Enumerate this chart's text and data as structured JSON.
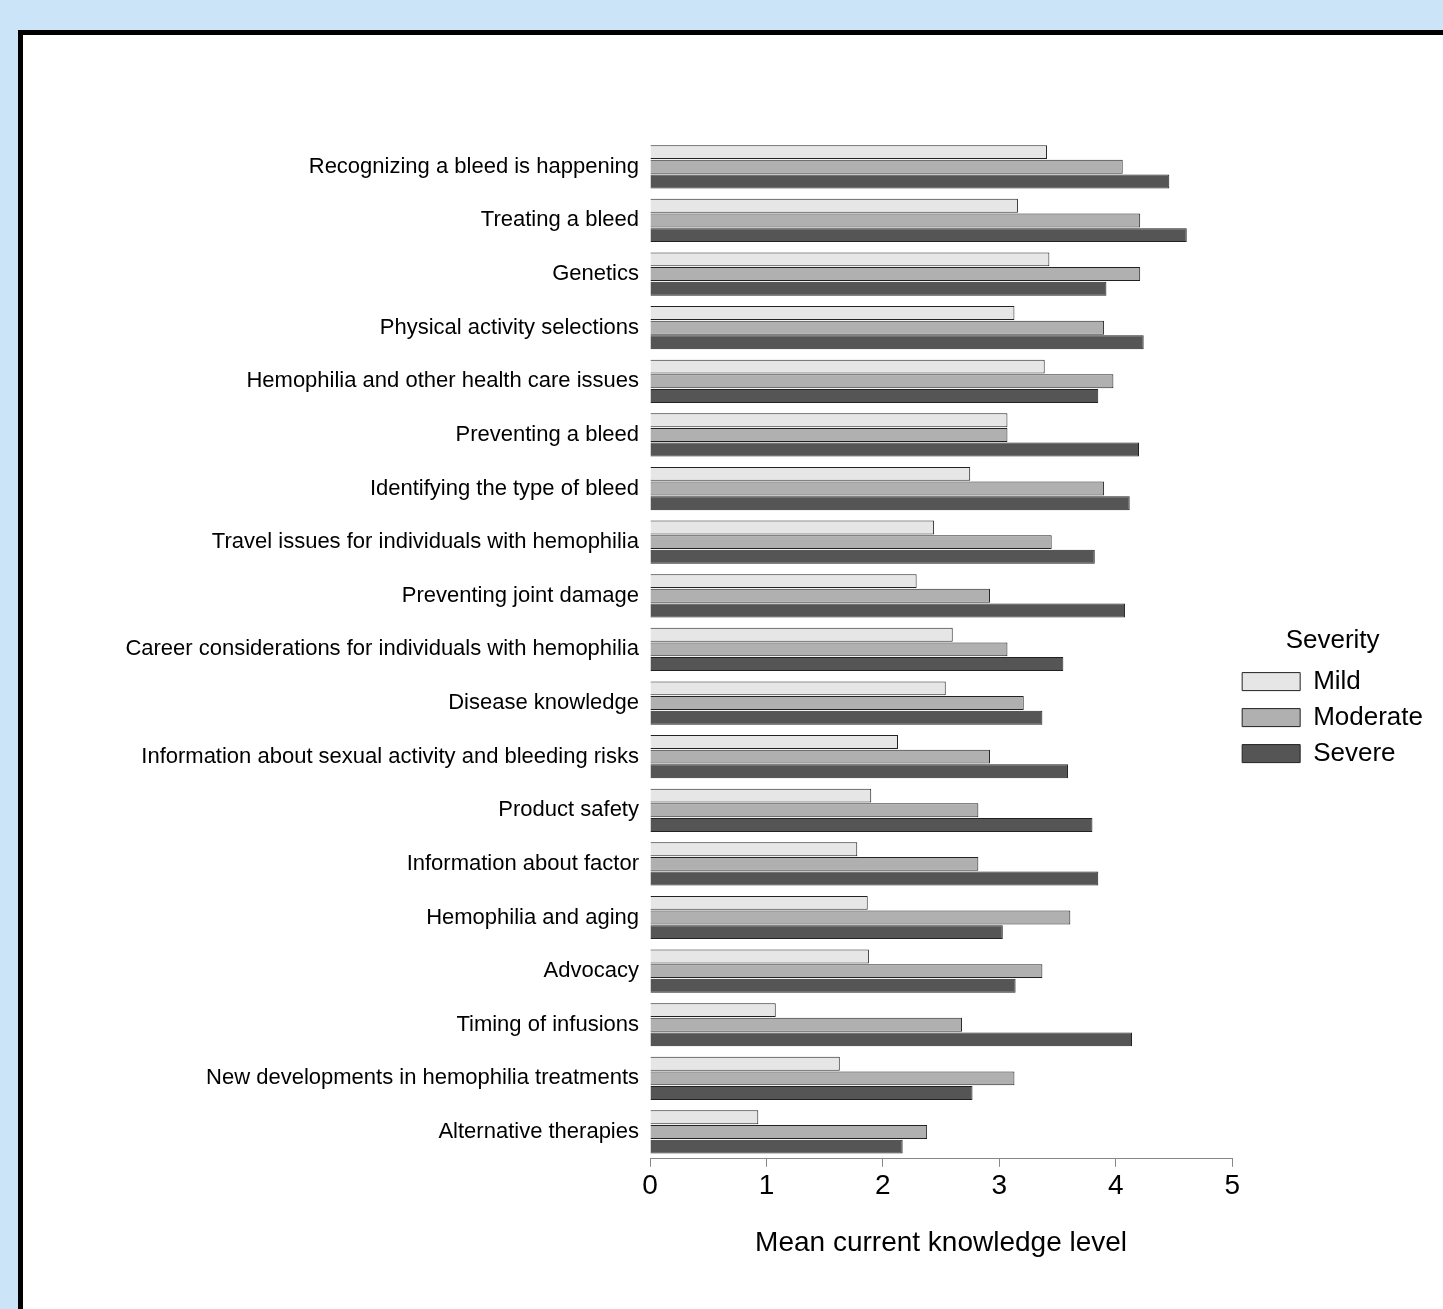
{
  "chart_data": {
    "type": "bar",
    "orientation": "horizontal",
    "xlabel": "Mean current knowledge level",
    "legend_title": "Severity",
    "legend": "right",
    "grid": false,
    "categories": [
      "Recognizing a bleed is happening",
      "Treating a bleed",
      "Genetics",
      "Physical activity selections",
      "Hemophilia and other health care issues",
      "Preventing a bleed",
      "Identifying the type of bleed",
      "Travel issues for individuals with hemophilia",
      "Preventing joint damage",
      "Career considerations for individuals with hemophilia",
      "Disease knowledge",
      "Information about sexual activity and bleeding risks",
      "Product safety",
      "Information about factor",
      "Hemophilia and aging",
      "Advocacy",
      "Timing of infusions",
      "New developments in hemophilia treatments",
      "Alternative therapies"
    ],
    "xlim": [
      0,
      5
    ],
    "xticks": [
      0,
      1,
      2,
      3,
      4,
      5
    ],
    "series": [
      {
        "name": "Mild",
        "color": "#e6e6e6",
        "values": [
          3.41,
          3.16,
          3.43,
          3.13,
          3.39,
          3.07,
          2.75,
          2.44,
          2.29,
          2.6,
          2.54,
          2.13,
          1.9,
          1.78,
          1.87,
          1.88,
          1.08,
          1.63,
          0.93
        ]
      },
      {
        "name": "Moderate",
        "color": "#b0b0b0",
        "values": [
          4.06,
          4.21,
          4.21,
          3.9,
          3.98,
          3.07,
          3.9,
          3.45,
          2.92,
          3.07,
          3.21,
          2.92,
          2.82,
          2.82,
          3.61,
          3.37,
          2.68,
          3.13,
          2.38
        ]
      },
      {
        "name": "Severe",
        "color": "#555555",
        "values": [
          4.46,
          4.61,
          3.92,
          4.24,
          3.85,
          4.2,
          4.12,
          3.82,
          4.08,
          3.55,
          3.37,
          3.59,
          3.8,
          3.85,
          3.03,
          3.14,
          4.14,
          2.77,
          2.17
        ]
      }
    ]
  }
}
